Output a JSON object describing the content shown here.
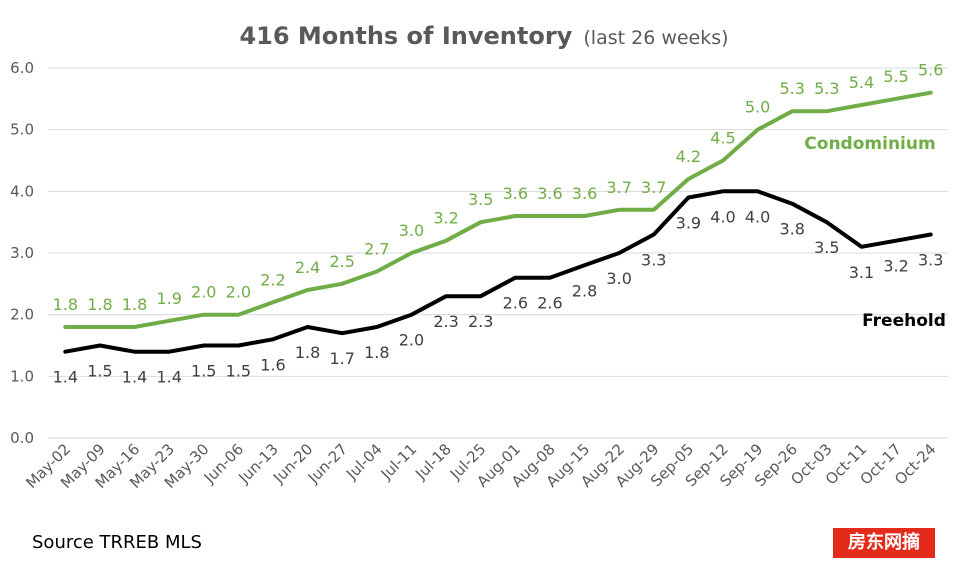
{
  "source_note": "Source TRREB MLS",
  "watermark_text": "房东网摘",
  "chart_data": {
    "type": "line",
    "title": "416 Months of Inventory",
    "subtitle": "(last 26 weeks)",
    "x": [
      "May-02",
      "May-09",
      "May-16",
      "May-23",
      "May-30",
      "Jun-06",
      "Jun-13",
      "Jun-20",
      "Jun-27",
      "Jul-04",
      "Jul-11",
      "Jul-18",
      "Jul-25",
      "Aug-01",
      "Aug-08",
      "Aug-15",
      "Aug-22",
      "Aug-29",
      "Sep-05",
      "Sep-12",
      "Sep-19",
      "Sep-26",
      "Oct-03",
      "Oct-11",
      "Oct-17",
      "Oct-24"
    ],
    "ylim": [
      0,
      6
    ],
    "yticks": [
      "0.0",
      "1.0",
      "2.0",
      "3.0",
      "4.0",
      "5.0",
      "6.0"
    ],
    "grid": true,
    "series": [
      {
        "name": "Condominium",
        "color": "#70ad47",
        "values": [
          1.8,
          1.8,
          1.8,
          1.9,
          2.0,
          2.0,
          2.2,
          2.4,
          2.5,
          2.7,
          3.0,
          3.2,
          3.5,
          3.6,
          3.6,
          3.6,
          3.7,
          3.7,
          4.2,
          4.5,
          5.0,
          5.3,
          5.3,
          5.4,
          5.5,
          5.6
        ],
        "labels": [
          "1.8",
          "1.8",
          "1.8",
          "1.9",
          "2.0",
          "2.0",
          "2.2",
          "2.4",
          "2.5",
          "2.7",
          "3.0",
          "3.2",
          "3.5",
          "3.6",
          "3.6",
          "3.6",
          "3.7",
          "3.7",
          "4.2",
          "4.5",
          "5.0",
          "5.3",
          "5.3",
          "5.4",
          "5.5",
          "5.6"
        ]
      },
      {
        "name": "Freehold",
        "color": "#000000",
        "values": [
          1.4,
          1.5,
          1.4,
          1.4,
          1.5,
          1.5,
          1.6,
          1.8,
          1.7,
          1.8,
          2.0,
          2.3,
          2.3,
          2.6,
          2.6,
          2.8,
          3.0,
          3.3,
          3.9,
          4.0,
          4.0,
          3.8,
          3.5,
          3.1,
          3.2,
          3.3
        ],
        "labels": [
          "1.4",
          "1.5",
          "1.4",
          "1.4",
          "1.5",
          "1.5",
          "1.6",
          "1.8",
          "1.7",
          "1.8",
          "2.0",
          "2.3",
          "2.3",
          "2.6",
          "2.6",
          "2.8",
          "3.0",
          "3.3",
          "3.9",
          "4.0",
          "4.0",
          "3.8",
          "3.5",
          "3.1",
          "3.2",
          "3.3"
        ]
      }
    ]
  }
}
